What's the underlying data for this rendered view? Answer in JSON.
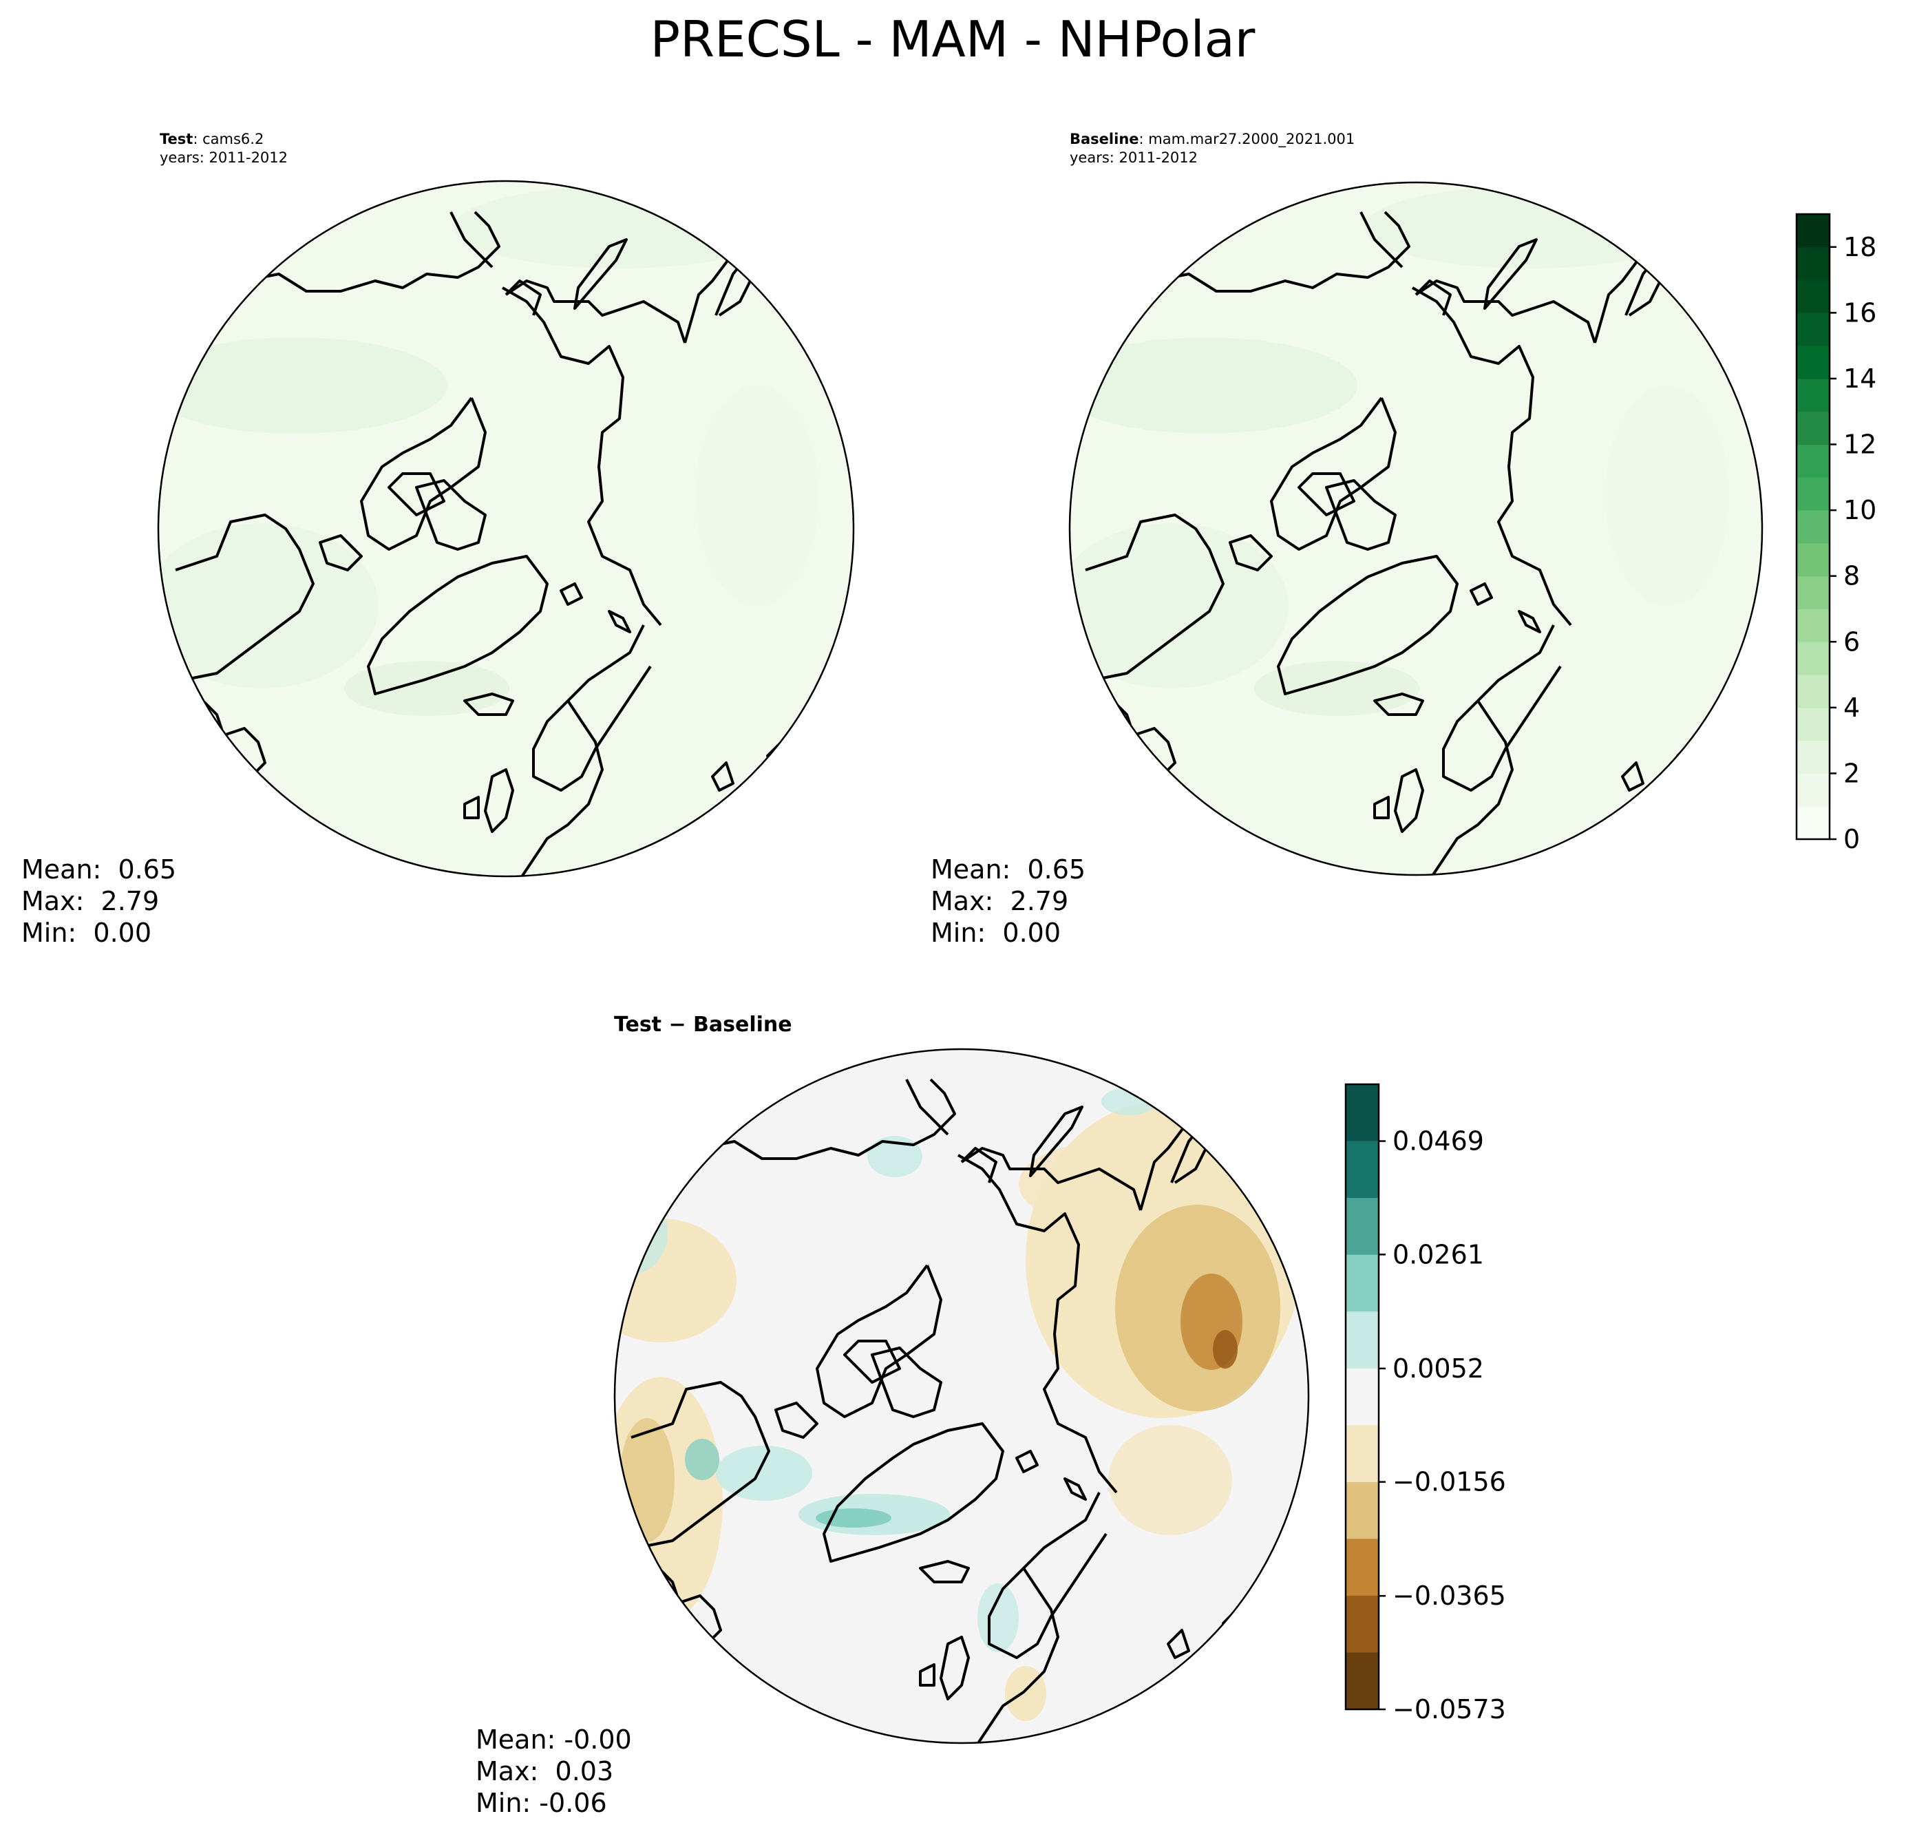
{
  "figure": {
    "title": "PRECSL - MAM - NHPolar"
  },
  "panels": {
    "test": {
      "label": "Test",
      "case": "cams6.2",
      "years": "years: 2011-2012",
      "stats": {
        "mean": "Mean:  0.65",
        "max": "Max:  2.79",
        "min": "Min:  0.00"
      }
    },
    "baseline": {
      "label": "Baseline",
      "case": "mam.mar27.2000_2021.001",
      "years": "years: 2011-2012",
      "stats": {
        "mean": "Mean:  0.65",
        "max": "Max:  2.79",
        "min": "Min:  0.00"
      }
    },
    "diff": {
      "label": "Test − Baseline",
      "stats": {
        "mean": "Mean: -0.00",
        "max": "Max:  0.03",
        "min": "Min: -0.06"
      }
    }
  },
  "colorbars": {
    "top": {
      "ticks": [
        "0",
        "2",
        "4",
        "6",
        "8",
        "10",
        "12",
        "14",
        "16",
        "18"
      ],
      "tick_values": [
        0,
        2,
        4,
        6,
        8,
        10,
        12,
        14,
        16,
        18
      ],
      "range": [
        0,
        19
      ],
      "colormap": "Greens",
      "colors": [
        "#f7fcf5",
        "#eef8ea",
        "#e5f5e0",
        "#d6efd0",
        "#c7e9c0",
        "#b4e1ad",
        "#a1d99b",
        "#8ace88",
        "#74c476",
        "#5db96b",
        "#41ab5d",
        "#32a055",
        "#238b45",
        "#11803b",
        "#006d2c",
        "#005e26",
        "#004d1e",
        "#00441b",
        "#003314"
      ]
    },
    "diff": {
      "ticks": [
        "0.0469",
        "0.0261",
        "0.0052",
        "−0.0156",
        "−0.0365",
        "−0.0573"
      ],
      "tick_values": [
        0.0469,
        0.0261,
        0.0052,
        -0.0156,
        -0.0365,
        -0.0573
      ],
      "colormap": "BrBG",
      "colors": [
        "#0b524a",
        "#17746b",
        "#4ba597",
        "#86cfc1",
        "#c7eae5",
        "#f3f4f3",
        "#f5e6c2",
        "#dfc27d",
        "#c28534",
        "#975b17",
        "#6b4010"
      ]
    }
  }
}
